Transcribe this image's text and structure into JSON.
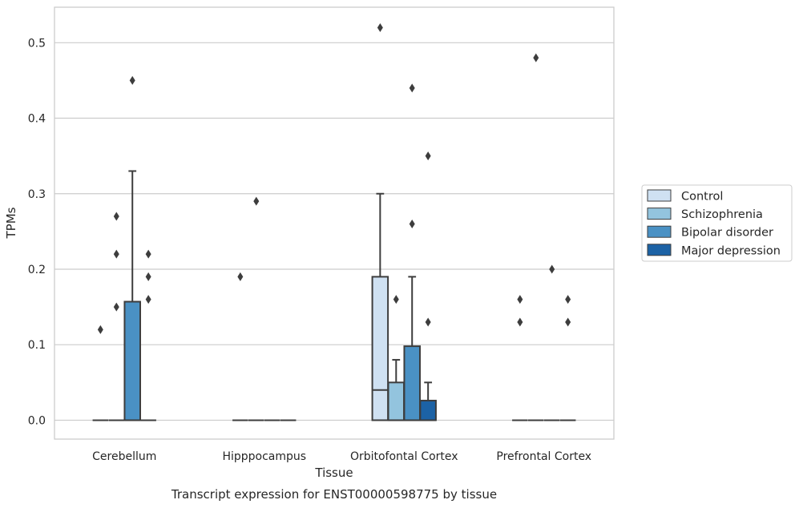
{
  "chart_data": {
    "type": "boxplot",
    "caption": "Transcript expression for ENST00000598775 by tissue",
    "xlabel": "Tissue",
    "ylabel": "TPMs",
    "ylim": [
      -0.025,
      0.547
    ],
    "yticks": [
      0.0,
      0.1,
      0.2,
      0.3,
      0.4,
      0.5
    ],
    "ytick_labels": [
      "0.0",
      "0.1",
      "0.2",
      "0.3",
      "0.4",
      "0.5"
    ],
    "categories": [
      "Cerebellum",
      "Hipppocampus",
      "Orbitofontal Cortex",
      "Prefrontal Cortex"
    ],
    "grid": true,
    "legend_position": "right",
    "series": [
      {
        "name": "Control",
        "color": "#cfe1f2",
        "boxes": [
          {
            "q1": 0,
            "median": 0,
            "q3": 0,
            "whisker_low": 0,
            "whisker_high": 0,
            "outliers": [
              0.12
            ]
          },
          {
            "q1": 0,
            "median": 0,
            "q3": 0,
            "whisker_low": 0,
            "whisker_high": 0,
            "outliers": [
              0.19
            ]
          },
          {
            "q1": 0,
            "median": 0.04,
            "q3": 0.19,
            "whisker_low": 0,
            "whisker_high": 0.3,
            "outliers": [
              0.52
            ]
          },
          {
            "q1": 0,
            "median": 0,
            "q3": 0,
            "whisker_low": 0,
            "whisker_high": 0,
            "outliers": [
              0.13,
              0.16
            ]
          }
        ]
      },
      {
        "name": "Schizophrenia",
        "color": "#93c4de",
        "boxes": [
          {
            "q1": 0,
            "median": 0,
            "q3": 0,
            "whisker_low": 0,
            "whisker_high": 0,
            "outliers": [
              0.15,
              0.22,
              0.27
            ]
          },
          {
            "q1": 0,
            "median": 0,
            "q3": 0,
            "whisker_low": 0,
            "whisker_high": 0,
            "outliers": [
              0.29
            ]
          },
          {
            "q1": 0,
            "median": 0,
            "q3": 0.05,
            "whisker_low": 0,
            "whisker_high": 0.08,
            "outliers": [
              0.16
            ]
          },
          {
            "q1": 0,
            "median": 0,
            "q3": 0,
            "whisker_low": 0,
            "whisker_high": 0,
            "outliers": [
              0.48
            ]
          }
        ]
      },
      {
        "name": "Bipolar disorder",
        "color": "#4a91c4",
        "boxes": [
          {
            "q1": 0,
            "median": 0,
            "q3": 0.157,
            "whisker_low": 0,
            "whisker_high": 0.33,
            "outliers": [
              0.45
            ]
          },
          {
            "q1": 0,
            "median": 0,
            "q3": 0,
            "whisker_low": 0,
            "whisker_high": 0,
            "outliers": []
          },
          {
            "q1": 0,
            "median": 0,
            "q3": 0.098,
            "whisker_low": 0,
            "whisker_high": 0.19,
            "outliers": [
              0.26,
              0.44
            ]
          },
          {
            "q1": 0,
            "median": 0,
            "q3": 0,
            "whisker_low": 0,
            "whisker_high": 0,
            "outliers": [
              0.2
            ]
          }
        ]
      },
      {
        "name": "Major depression",
        "color": "#1c62a5",
        "boxes": [
          {
            "q1": 0,
            "median": 0,
            "q3": 0,
            "whisker_low": 0,
            "whisker_high": 0,
            "outliers": [
              0.16,
              0.19,
              0.22
            ]
          },
          {
            "q1": 0,
            "median": 0,
            "q3": 0,
            "whisker_low": 0,
            "whisker_high": 0,
            "outliers": []
          },
          {
            "q1": 0,
            "median": 0,
            "q3": 0.026,
            "whisker_low": 0,
            "whisker_high": 0.05,
            "outliers": [
              0.13,
              0.35
            ]
          },
          {
            "q1": 0,
            "median": 0,
            "q3": 0,
            "whisker_low": 0,
            "whisker_high": 0,
            "outliers": [
              0.13,
              0.16
            ]
          }
        ]
      }
    ]
  },
  "colors": {
    "grid": "#cccccc",
    "frame": "#cccccc",
    "box_edge": "#3d3d3d",
    "text": "#262626"
  }
}
